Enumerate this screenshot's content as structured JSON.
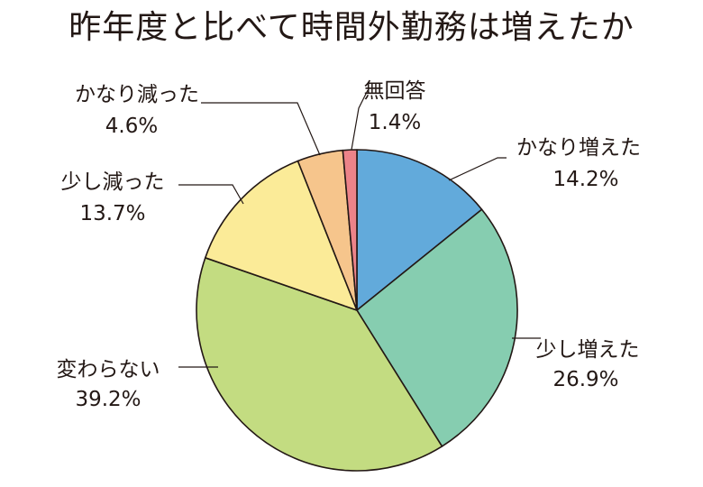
{
  "chart_data": {
    "type": "pie",
    "title": "昨年度と比べて時間外勤務は増えたか",
    "slices": [
      {
        "label": "かなり増えた",
        "value": 14.2,
        "value_label": "14.2%",
        "color": "#62aadb"
      },
      {
        "label": "少し増えた",
        "value": 26.9,
        "value_label": "26.9%",
        "color": "#86cdb0"
      },
      {
        "label": "変わらない",
        "value": 39.2,
        "value_label": "39.2%",
        "color": "#c3dc81"
      },
      {
        "label": "少し減った",
        "value": 13.7,
        "value_label": "13.7%",
        "color": "#fbeb98"
      },
      {
        "label": "かなり減った",
        "value": 4.6,
        "value_label": "4.6%",
        "color": "#f6c58c"
      },
      {
        "label": "無回答",
        "value": 1.4,
        "value_label": "1.4%",
        "color": "#ec8389"
      }
    ],
    "start": "12 o'clock",
    "direction": "clockwise",
    "legend": "none"
  },
  "style": {
    "text_color": "#231815",
    "edge_color": "#231815"
  }
}
